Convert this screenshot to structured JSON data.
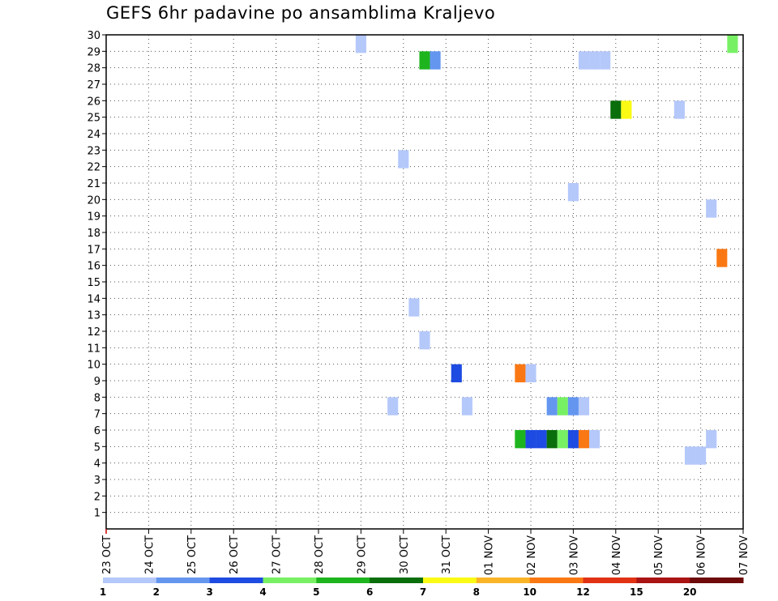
{
  "chart_data": {
    "type": "heatmap",
    "title": "GEFS 6hr padavine po ansamblima Kraljevo",
    "xlabel": "",
    "ylabel": "",
    "x_tick_labels": [
      "23 OCT",
      "24 OCT",
      "25 OCT",
      "26 OCT",
      "27 OCT",
      "28 OCT",
      "29 OCT",
      "30 OCT",
      "31 OCT",
      "01 NOV",
      "02 NOV",
      "03 NOV",
      "04 NOV",
      "05 NOV",
      "06 NOV",
      "07 NOV"
    ],
    "y_tick_labels": [
      "1",
      "2",
      "3",
      "4",
      "5",
      "6",
      "7",
      "8",
      "9",
      "10",
      "11",
      "12",
      "13",
      "14",
      "15",
      "16",
      "17",
      "18",
      "19",
      "20",
      "21",
      "22",
      "23",
      "24",
      "25",
      "26",
      "27",
      "28",
      "29",
      "30"
    ],
    "xlim_days": [
      0,
      15
    ],
    "ylim": [
      0,
      30
    ],
    "grid": true,
    "colorbar": {
      "labels": [
        "1",
        "2",
        "3",
        "4",
        "5",
        "6",
        "7",
        "8",
        "10",
        "12",
        "15",
        "20"
      ],
      "colors": [
        "#b4c8fa",
        "#6496f0",
        "#1e4be1",
        "#78f064",
        "#1eb41e",
        "#0a6e0a",
        "#fafa14",
        "#fab428",
        "#fa7814",
        "#e13214",
        "#aa1414",
        "#6e0a0a"
      ]
    },
    "points": [
      {
        "day": 6.0,
        "member": 29,
        "v": 1
      },
      {
        "day": 14.75,
        "member": 29,
        "v": 4
      },
      {
        "day": 7.5,
        "member": 28,
        "v": 5
      },
      {
        "day": 7.75,
        "member": 28,
        "v": 2
      },
      {
        "day": 11.25,
        "member": 28,
        "v": 1
      },
      {
        "day": 11.5,
        "member": 28,
        "v": 1
      },
      {
        "day": 11.75,
        "member": 28,
        "v": 1
      },
      {
        "day": 12.0,
        "member": 25,
        "v": 6
      },
      {
        "day": 12.25,
        "member": 25,
        "v": 7
      },
      {
        "day": 13.5,
        "member": 25,
        "v": 1
      },
      {
        "day": 7.0,
        "member": 22,
        "v": 1
      },
      {
        "day": 11.0,
        "member": 20,
        "v": 1
      },
      {
        "day": 14.25,
        "member": 19,
        "v": 1
      },
      {
        "day": 14.5,
        "member": 16,
        "v": 10
      },
      {
        "day": 7.25,
        "member": 13,
        "v": 1
      },
      {
        "day": 7.5,
        "member": 11,
        "v": 1
      },
      {
        "day": 8.25,
        "member": 9,
        "v": 3
      },
      {
        "day": 9.75,
        "member": 9,
        "v": 10
      },
      {
        "day": 10.0,
        "member": 9,
        "v": 1
      },
      {
        "day": 6.75,
        "member": 7,
        "v": 1
      },
      {
        "day": 8.5,
        "member": 7,
        "v": 1
      },
      {
        "day": 10.5,
        "member": 7,
        "v": 2
      },
      {
        "day": 10.75,
        "member": 7,
        "v": 4
      },
      {
        "day": 11.0,
        "member": 7,
        "v": 2
      },
      {
        "day": 11.25,
        "member": 7,
        "v": 1
      },
      {
        "day": 9.75,
        "member": 5,
        "v": 5
      },
      {
        "day": 10.0,
        "member": 5,
        "v": 3
      },
      {
        "day": 10.25,
        "member": 5,
        "v": 3
      },
      {
        "day": 10.5,
        "member": 5,
        "v": 6
      },
      {
        "day": 10.75,
        "member": 5,
        "v": 4
      },
      {
        "day": 11.0,
        "member": 5,
        "v": 3
      },
      {
        "day": 11.25,
        "member": 5,
        "v": 10
      },
      {
        "day": 11.5,
        "member": 5,
        "v": 1
      },
      {
        "day": 13.75,
        "member": 4,
        "v": 1
      },
      {
        "day": 14.0,
        "member": 4,
        "v": 1
      },
      {
        "day": 14.25,
        "member": 5,
        "v": 1
      }
    ]
  }
}
